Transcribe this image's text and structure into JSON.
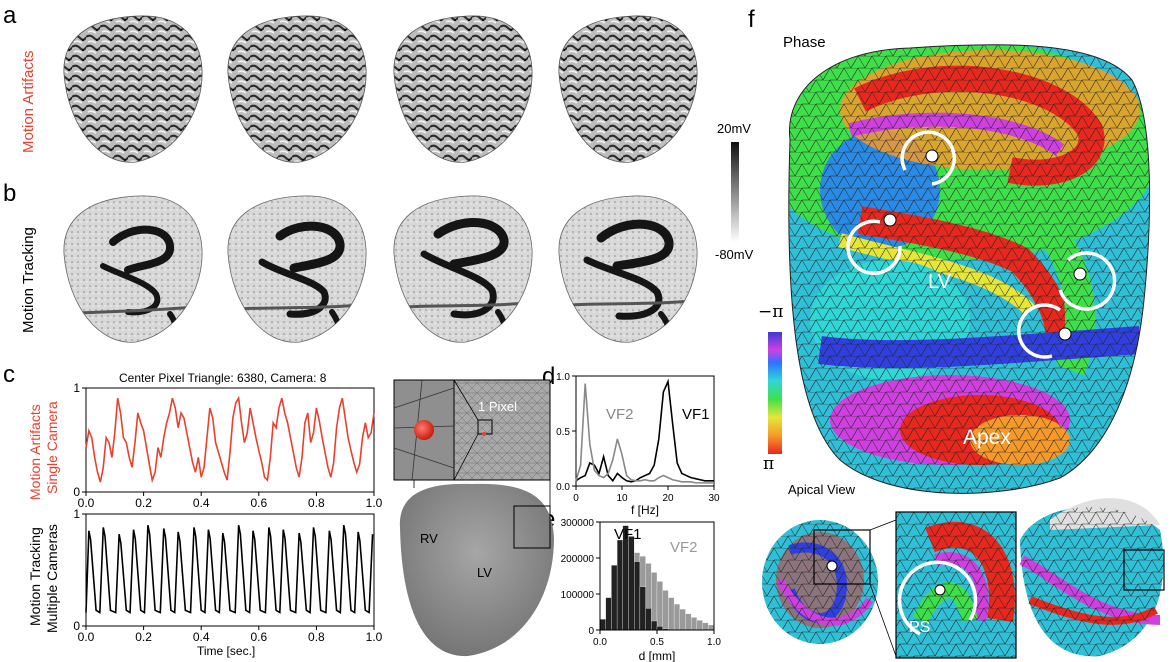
{
  "panels": {
    "a": {
      "label": "a",
      "row_title": "Motion Artifacts"
    },
    "b": {
      "label": "b",
      "row_title": "Motion Tracking"
    },
    "c": {
      "label": "c",
      "plot_title": "Center Pixel Triangle: 6380, Camera: 8",
      "top_ylabel_1": "Motion Artifacts",
      "top_ylabel_2": "Single Camera",
      "bottom_ylabel_1": "Motion Tracking",
      "bottom_ylabel_2": "Multiple Cameras",
      "xlabel": "Time [sec.]",
      "pixel_label": "1 Pixel",
      "rv_label": "RV",
      "lv_label": "LV"
    },
    "d": {
      "label": "d"
    },
    "e": {
      "label": "e"
    },
    "f": {
      "label": "f",
      "phase_title": "Phase",
      "lv_label": "LV",
      "apex_label": "Apex",
      "apical_title": "Apical View",
      "ps_label": "PS",
      "colorbar_top": "−π",
      "colorbar_bottom": "π"
    }
  },
  "colorbar_gray": {
    "top": "20mV",
    "bottom": "-80mV"
  },
  "chart_data": [
    {
      "type": "line",
      "id": "c-top",
      "title": "Center Pixel Triangle: 6380, Camera: 8",
      "xlim": [
        0,
        1
      ],
      "ylim": [
        0,
        1
      ],
      "xticks": [
        "0.0",
        "0.2",
        "0.4",
        "0.6",
        "0.8",
        "1.0"
      ],
      "yticks": [
        "0",
        "1"
      ],
      "series": [
        {
          "color": "#e8412e",
          "x": [
            0,
            0.01,
            0.02,
            0.03,
            0.04,
            0.05,
            0.06,
            0.07,
            0.08,
            0.09,
            0.1,
            0.11,
            0.12,
            0.13,
            0.14,
            0.15,
            0.16,
            0.17,
            0.18,
            0.19,
            0.2,
            0.21,
            0.22,
            0.23,
            0.24,
            0.25,
            0.26,
            0.27,
            0.28,
            0.29,
            0.3,
            0.31,
            0.32,
            0.33,
            0.34,
            0.35,
            0.36,
            0.37,
            0.38,
            0.39,
            0.4,
            0.41,
            0.42,
            0.43,
            0.44,
            0.45,
            0.46,
            0.47,
            0.48,
            0.49,
            0.5,
            0.51,
            0.52,
            0.53,
            0.54,
            0.55,
            0.56,
            0.57,
            0.58,
            0.59,
            0.6,
            0.61,
            0.62,
            0.63,
            0.64,
            0.65,
            0.66,
            0.67,
            0.68,
            0.69,
            0.7,
            0.71,
            0.72,
            0.73,
            0.74,
            0.75,
            0.76,
            0.77,
            0.78,
            0.79,
            0.8,
            0.81,
            0.82,
            0.83,
            0.84,
            0.85,
            0.86,
            0.87,
            0.88,
            0.89,
            0.9,
            0.91,
            0.92,
            0.93,
            0.94,
            0.95,
            0.96,
            0.97,
            0.98,
            0.99,
            1.0
          ],
          "y": [
            0.45,
            0.62,
            0.55,
            0.35,
            0.2,
            0.1,
            0.25,
            0.55,
            0.5,
            0.35,
            0.6,
            0.95,
            0.8,
            0.55,
            0.5,
            0.35,
            0.25,
            0.5,
            0.8,
            0.7,
            0.62,
            0.45,
            0.28,
            0.12,
            0.2,
            0.45,
            0.35,
            0.55,
            0.7,
            0.8,
            0.95,
            0.85,
            0.65,
            0.8,
            0.75,
            0.6,
            0.45,
            0.3,
            0.2,
            0.35,
            0.15,
            0.25,
            0.55,
            0.85,
            0.75,
            0.5,
            0.4,
            0.3,
            0.2,
            0.12,
            0.4,
            0.75,
            0.9,
            0.95,
            0.7,
            0.5,
            0.6,
            0.85,
            0.7,
            0.55,
            0.42,
            0.3,
            0.15,
            0.12,
            0.35,
            0.7,
            0.65,
            0.85,
            0.95,
            0.8,
            0.7,
            0.55,
            0.4,
            0.25,
            0.15,
            0.35,
            0.7,
            0.8,
            0.5,
            0.6,
            0.85,
            0.72,
            0.55,
            0.4,
            0.25,
            0.15,
            0.3,
            0.65,
            0.85,
            0.95,
            0.75,
            0.55,
            0.42,
            0.3,
            0.2,
            0.28,
            0.55,
            0.7,
            0.55,
            0.6,
            0.8
          ]
        }
      ]
    },
    {
      "type": "line",
      "id": "c-bottom",
      "xlabel": "Time [sec.]",
      "xlim": [
        0,
        1
      ],
      "ylim": [
        0,
        1
      ],
      "xticks": [
        "0.0",
        "0.2",
        "0.4",
        "0.6",
        "0.8",
        "1.0"
      ],
      "yticks": [
        "0",
        "1"
      ],
      "series": [
        {
          "color": "#000000",
          "peaks": [
            0.01,
            0.06,
            0.115,
            0.165,
            0.215,
            0.27,
            0.32,
            0.375,
            0.425,
            0.475,
            0.53,
            0.58,
            0.635,
            0.685,
            0.74,
            0.79,
            0.845,
            0.895,
            0.945,
            0.995
          ],
          "peak_values": [
            0.85,
            0.88,
            0.82,
            0.86,
            0.9,
            0.87,
            0.84,
            0.88,
            0.86,
            0.83,
            0.9,
            0.85,
            0.88,
            0.86,
            0.83,
            0.88,
            0.85,
            0.9,
            0.84,
            0.82
          ],
          "baseline": 0.12
        }
      ]
    },
    {
      "type": "line",
      "id": "d",
      "xlabel": "f [Hz]",
      "xlim": [
        0,
        30
      ],
      "ylim": [
        0,
        1
      ],
      "xticks": [
        "0",
        "10",
        "20",
        "30"
      ],
      "yticks": [
        "0.0",
        "0.5",
        "1.0"
      ],
      "series": [
        {
          "name": "VF1",
          "color": "#000000",
          "x": [
            0,
            1,
            2,
            3,
            4,
            5,
            6,
            7,
            8,
            9,
            10,
            11,
            12,
            13,
            14,
            15,
            16,
            17,
            18,
            19,
            20,
            21,
            22,
            23,
            24,
            25,
            26,
            27,
            28,
            29,
            30
          ],
          "y": [
            0.05,
            0.08,
            0.1,
            0.22,
            0.2,
            0.12,
            0.28,
            0.1,
            0.05,
            0.12,
            0.08,
            0.05,
            0.04,
            0.05,
            0.08,
            0.1,
            0.12,
            0.2,
            0.45,
            0.9,
            1.0,
            0.6,
            0.22,
            0.12,
            0.1,
            0.08,
            0.07,
            0.06,
            0.05,
            0.05,
            0.05
          ]
        },
        {
          "name": "VF2",
          "color": "#888888",
          "x": [
            0,
            1,
            2,
            3,
            4,
            5,
            6,
            7,
            8,
            9,
            10,
            11,
            12,
            13,
            14,
            15,
            16,
            17,
            18,
            19,
            20,
            21,
            22,
            23,
            24,
            25,
            26,
            27,
            28,
            29,
            30
          ],
          "y": [
            0.05,
            0.2,
            0.98,
            0.4,
            0.15,
            0.1,
            0.08,
            0.12,
            0.25,
            0.45,
            0.3,
            0.1,
            0.06,
            0.05,
            0.05,
            0.06,
            0.05,
            0.05,
            0.08,
            0.1,
            0.08,
            0.06,
            0.05,
            0.04,
            0.04,
            0.04,
            0.03,
            0.03,
            0.03,
            0.03,
            0.03
          ]
        }
      ]
    },
    {
      "type": "bar",
      "id": "e",
      "xlabel": "d [mm]",
      "xlim": [
        0,
        1
      ],
      "ylim": [
        0,
        300000
      ],
      "xticks": [
        "0.0",
        "0.5",
        "1.0"
      ],
      "yticks": [
        "0",
        "100000",
        "200000",
        "300000"
      ],
      "bin_width": 0.05,
      "series": [
        {
          "name": "VF1",
          "color": "#222222",
          "bins": [
            0.0,
            0.05,
            0.1,
            0.15,
            0.2,
            0.25,
            0.3,
            0.35,
            0.4,
            0.45,
            0.5,
            0.55
          ],
          "values": [
            30000,
            90000,
            180000,
            250000,
            290000,
            260000,
            190000,
            120000,
            60000,
            25000,
            10000,
            3000
          ]
        },
        {
          "name": "VF2",
          "color": "#9a9a9a",
          "bins": [
            0.0,
            0.05,
            0.1,
            0.15,
            0.2,
            0.25,
            0.3,
            0.35,
            0.4,
            0.45,
            0.5,
            0.55,
            0.6,
            0.65,
            0.7,
            0.75,
            0.8,
            0.85,
            0.9,
            0.95
          ],
          "values": [
            10000,
            40000,
            90000,
            140000,
            180000,
            205000,
            215000,
            205000,
            185000,
            160000,
            135000,
            110000,
            90000,
            72000,
            58000,
            45000,
            35000,
            27000,
            20000,
            14000
          ]
        }
      ]
    }
  ]
}
